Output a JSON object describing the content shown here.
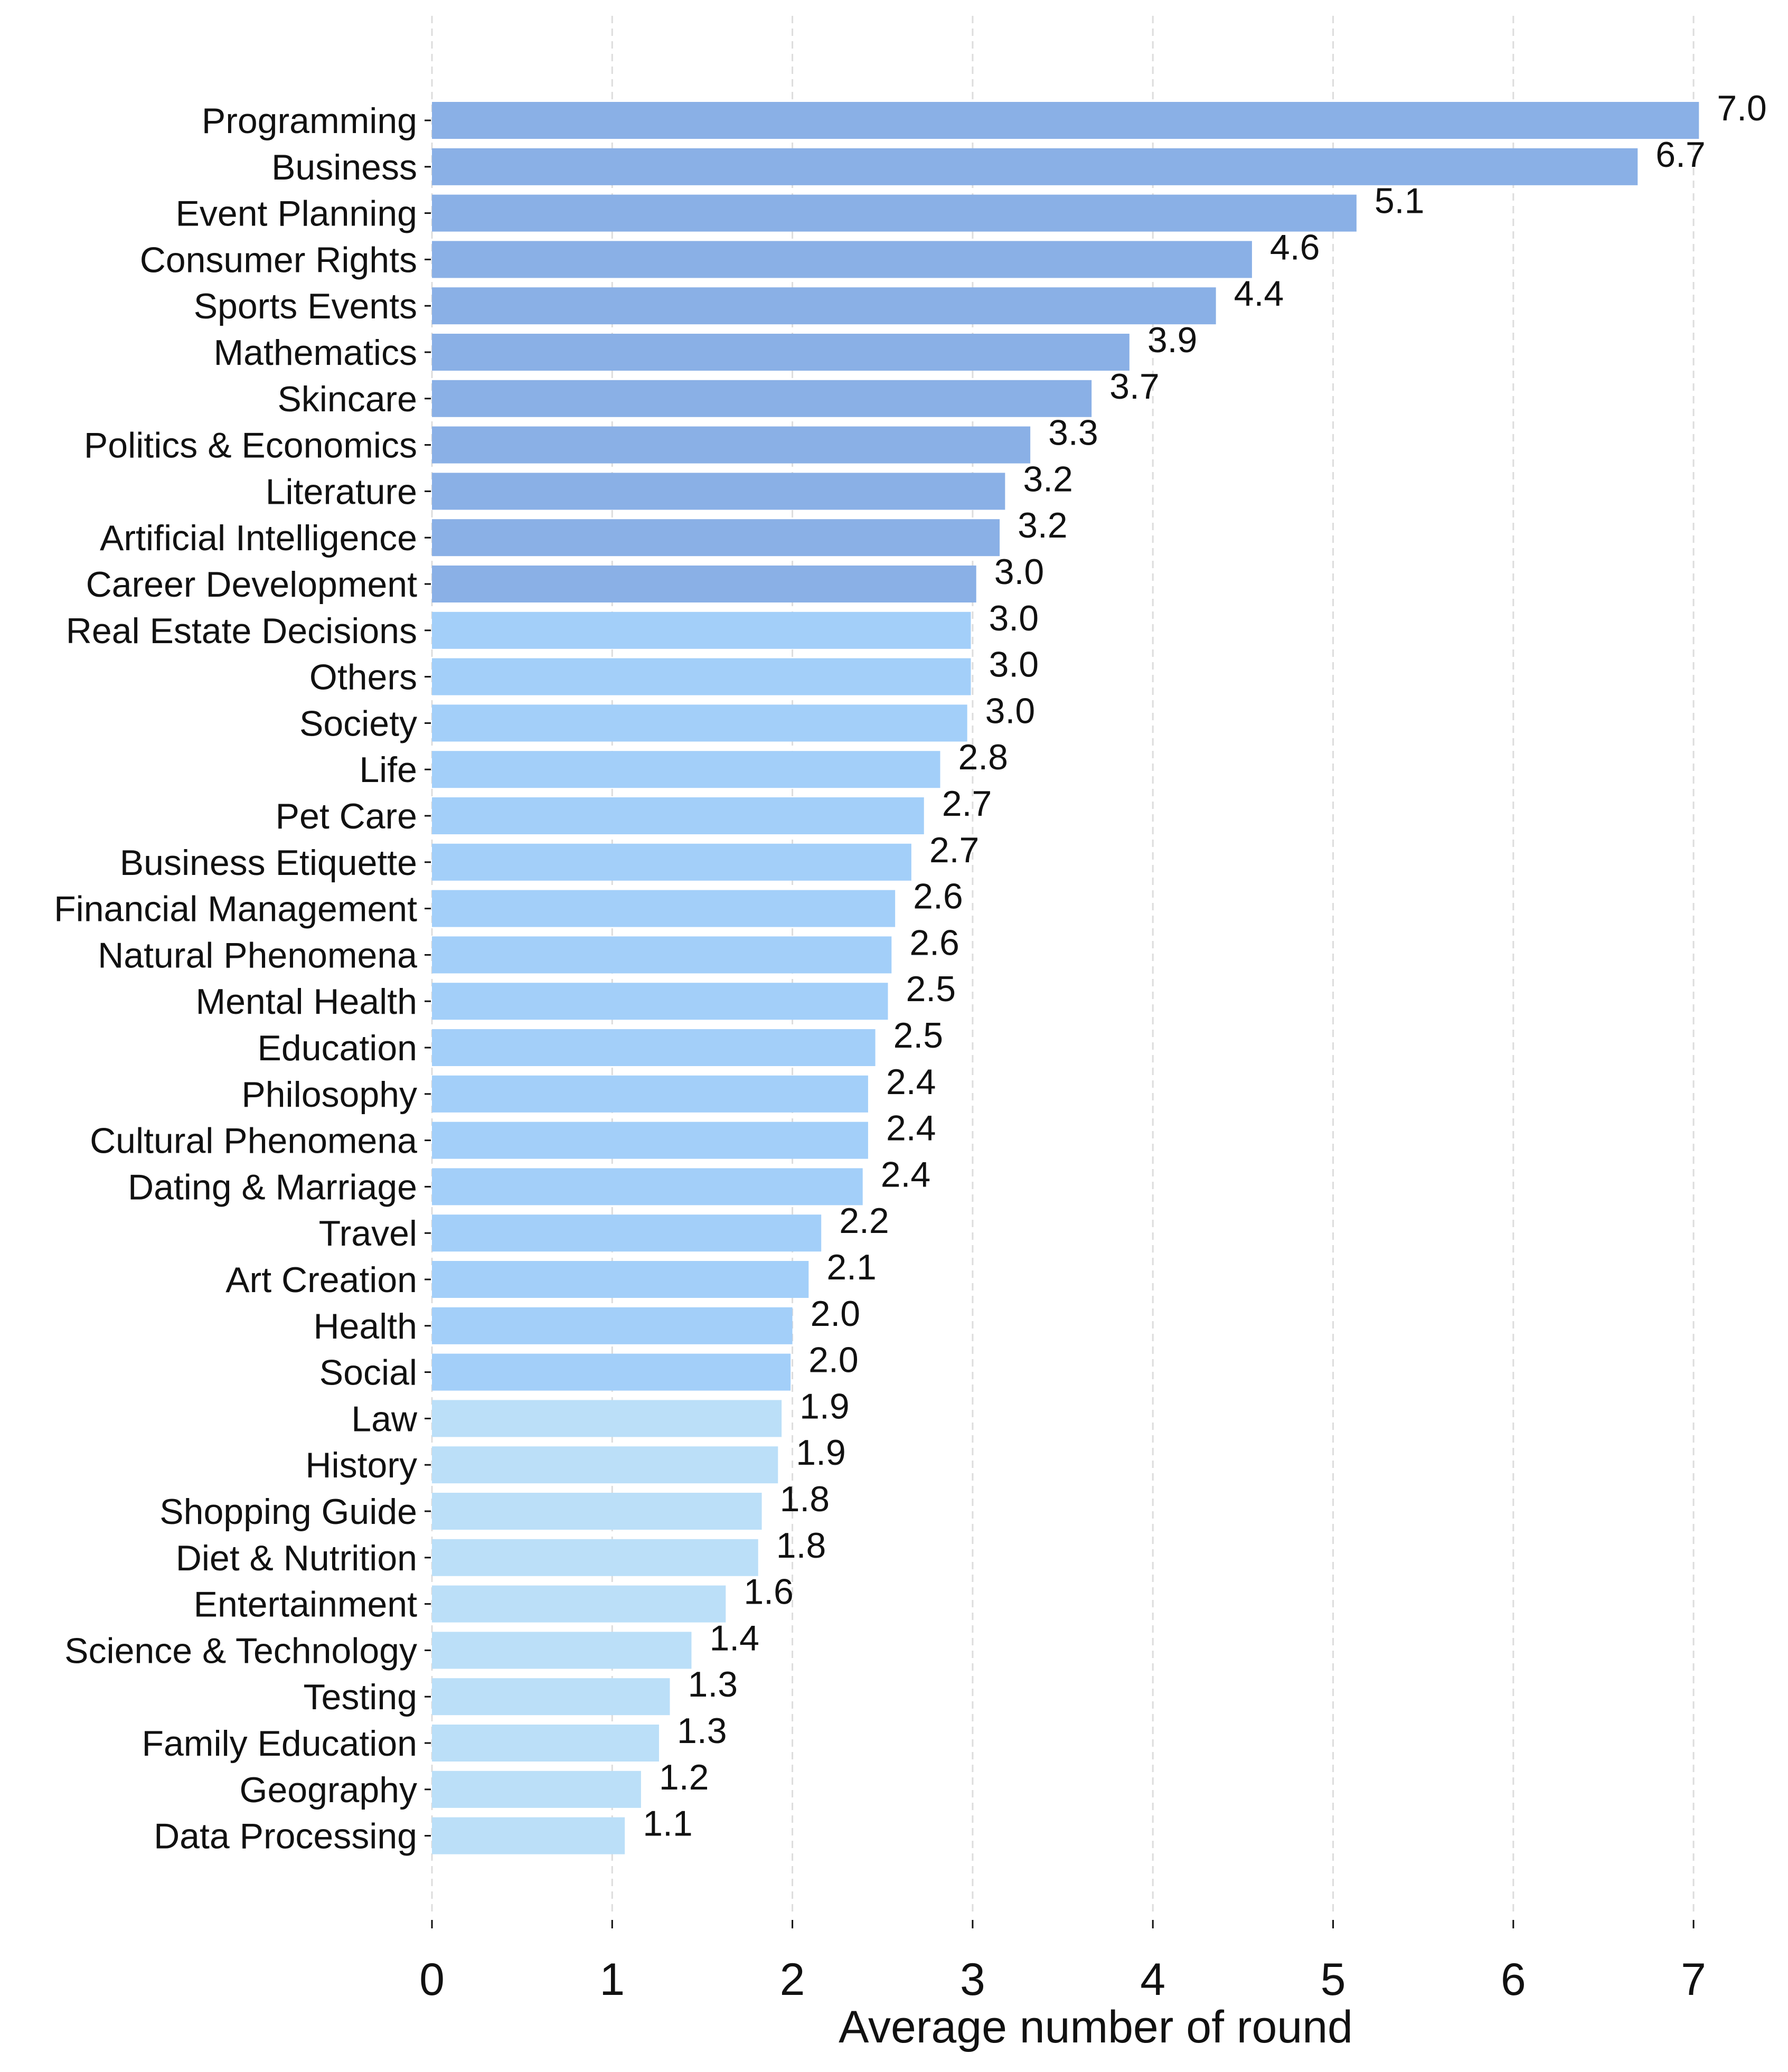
{
  "chart_data": {
    "type": "bar",
    "orientation": "horizontal",
    "title": "",
    "xlabel": "Average number of round",
    "ylabel": "",
    "xlim": [
      0,
      7.3
    ],
    "xticks": [
      0,
      1,
      2,
      3,
      4,
      5,
      6,
      7
    ],
    "grid": "vertical dashed",
    "colors": {
      "high": "#8ab0e6",
      "mid": "#a3cff9",
      "low": "#bbdff8"
    },
    "categories": [
      "Programming",
      "Business",
      "Event Planning",
      "Consumer Rights",
      "Sports Events",
      "Mathematics",
      "Skincare",
      "Politics & Economics",
      "Literature",
      "Artificial Intelligence",
      "Career Development",
      "Real Estate Decisions",
      "Others",
      "Society",
      "Life",
      "Pet Care",
      "Business Etiquette",
      "Financial Management",
      "Natural Phenomena",
      "Mental Health",
      "Education",
      "Philosophy",
      "Cultural Phenomena",
      "Dating & Marriage",
      "Travel",
      "Art Creation",
      "Health",
      "Social",
      "Law",
      "History",
      "Shopping Guide",
      "Diet & Nutrition",
      "Entertainment",
      "Science & Technology",
      "Testing",
      "Family Education",
      "Geography",
      "Data Processing"
    ],
    "values": [
      7.03,
      6.69,
      5.13,
      4.55,
      4.35,
      3.87,
      3.66,
      3.32,
      3.18,
      3.15,
      3.02,
      2.99,
      2.99,
      2.97,
      2.82,
      2.73,
      2.66,
      2.57,
      2.55,
      2.53,
      2.46,
      2.42,
      2.42,
      2.39,
      2.16,
      2.09,
      2.0,
      1.99,
      1.94,
      1.92,
      1.83,
      1.81,
      1.63,
      1.44,
      1.32,
      1.26,
      1.16,
      1.07
    ],
    "value_labels": [
      "7.0",
      "6.7",
      "5.1",
      "4.6",
      "4.4",
      "3.9",
      "3.7",
      "3.3",
      "3.2",
      "3.2",
      "3.0",
      "3.0",
      "3.0",
      "3.0",
      "2.8",
      "2.7",
      "2.7",
      "2.6",
      "2.6",
      "2.5",
      "2.5",
      "2.4",
      "2.4",
      "2.4",
      "2.2",
      "2.1",
      "2.0",
      "2.0",
      "1.9",
      "1.9",
      "1.8",
      "1.8",
      "1.6",
      "1.4",
      "1.3",
      "1.3",
      "1.2",
      "1.1"
    ],
    "color_groups": [
      "high",
      "high",
      "high",
      "high",
      "high",
      "high",
      "high",
      "high",
      "high",
      "high",
      "high",
      "mid",
      "mid",
      "mid",
      "mid",
      "mid",
      "mid",
      "mid",
      "mid",
      "mid",
      "mid",
      "mid",
      "mid",
      "mid",
      "mid",
      "mid",
      "mid",
      "mid",
      "low",
      "low",
      "low",
      "low",
      "low",
      "low",
      "low",
      "low",
      "low",
      "low"
    ]
  }
}
